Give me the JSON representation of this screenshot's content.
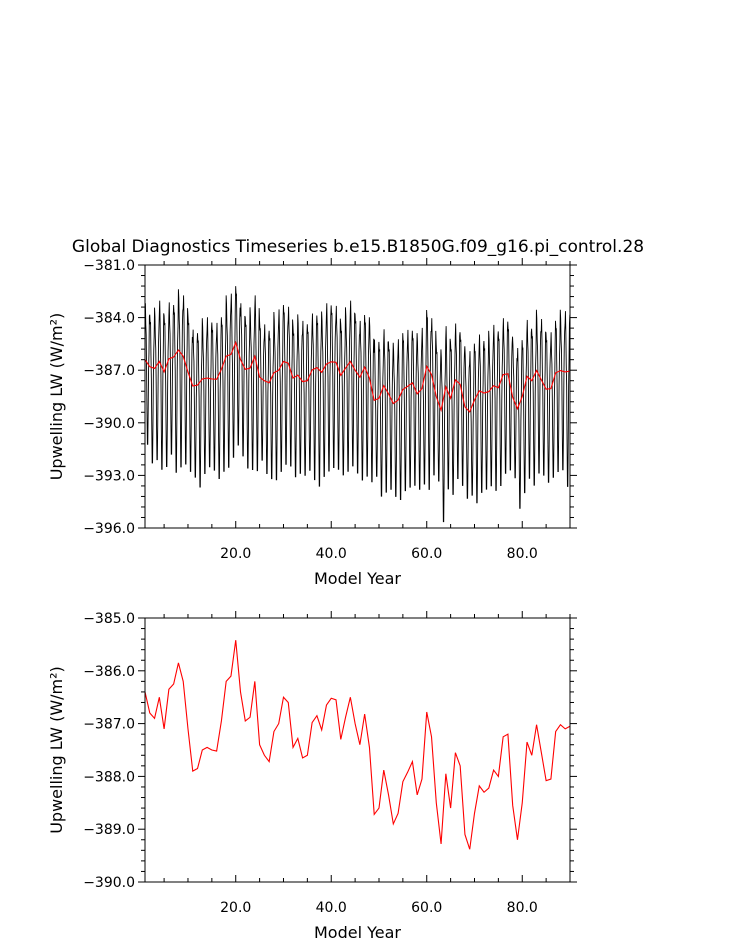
{
  "title": "Global Diagnostics Timeseries b.e15.B1850G.f09_g16.pi_control.28",
  "colors": {
    "monthly": "#000000",
    "annual": "#ff0000",
    "frame": "#000000"
  },
  "chart_data": [
    {
      "type": "line",
      "ylabel": "Upwelling LW (W/m²)",
      "xlabel": "Model Year",
      "xlim": [
        1,
        90
      ],
      "ylim": [
        -396.0,
        -381.0
      ],
      "xticks": [
        20,
        40,
        60,
        80
      ],
      "xtick_labels": [
        "20.0",
        "40.0",
        "60.0",
        "80.0"
      ],
      "yticks": [
        -381.0,
        -384.0,
        -387.0,
        -390.0,
        -393.0,
        -396.0
      ],
      "ytick_labels": [
        "−381.0",
        "−384.0",
        "−387.0",
        "−390.0",
        "−393.0",
        "−396.0"
      ],
      "series": [
        {
          "role": "monthly",
          "color": "#000000",
          "x_start": 1.0,
          "x_step": 0.0833,
          "seasonal_amplitude": 3.6,
          "annual_mean_source": "annual",
          "minima_by_year": [
            -391.5,
            -392.6,
            -392.4,
            -393.0,
            -392.8,
            -392.1,
            -393.2,
            -392.9,
            -392.7,
            -393.1,
            -393.4,
            -394.0,
            -393.2,
            -392.8,
            -393.0,
            -393.5,
            -393.1,
            -392.9,
            -392.3,
            -391.6,
            -392.2,
            -392.9,
            -393.0,
            -393.1,
            -392.4,
            -393.2,
            -393.5,
            -393.6,
            -393.1,
            -392.7,
            -392.8,
            -393.4,
            -393.2,
            -393.3,
            -393.0,
            -393.6,
            -394.0,
            -393.4,
            -393.1,
            -392.9,
            -393.0,
            -393.3,
            -393.1,
            -392.8,
            -393.2,
            -393.6,
            -393.4,
            -393.7,
            -393.3,
            -394.5,
            -394.3,
            -394.1,
            -394.5,
            -394.7,
            -394.2,
            -394.0,
            -393.9,
            -394.1,
            -393.8,
            -394.2,
            -393.3,
            -393.6,
            -396.0,
            -394.1,
            -394.4,
            -393.5,
            -393.9,
            -394.6,
            -394.4,
            -394.9,
            -394.3,
            -394.1,
            -393.9,
            -394.2,
            -393.9,
            -393.2,
            -393.0,
            -393.4,
            -395.2,
            -394.3,
            -393.5,
            -393.9,
            -393.2,
            -393.3,
            -393.7,
            -393.4,
            -393.1,
            -393.0,
            -394.0,
            -393.4
          ]
        },
        {
          "role": "annual",
          "color": "#ff0000",
          "x": [
            1,
            2,
            3,
            4,
            5,
            6,
            7,
            8,
            9,
            10,
            11,
            12,
            13,
            14,
            15,
            16,
            17,
            18,
            19,
            20,
            21,
            22,
            23,
            24,
            25,
            26,
            27,
            28,
            29,
            30,
            31,
            32,
            33,
            34,
            35,
            36,
            37,
            38,
            39,
            40,
            41,
            42,
            43,
            44,
            45,
            46,
            47,
            48,
            49,
            50,
            51,
            52,
            53,
            54,
            55,
            56,
            57,
            58,
            59,
            60,
            61,
            62,
            63,
            64,
            65,
            66,
            67,
            68,
            69,
            70,
            71,
            72,
            73,
            74,
            75,
            76,
            77,
            78,
            79,
            80,
            81,
            82,
            83,
            84,
            85,
            86,
            87,
            88,
            89,
            90
          ],
          "values": [
            -386.4,
            -386.8,
            -386.9,
            -386.5,
            -387.1,
            -386.35,
            -386.25,
            -385.85,
            -386.2,
            -387.1,
            -387.9,
            -387.85,
            -387.5,
            -387.45,
            -387.5,
            -387.52,
            -386.95,
            -386.2,
            -386.1,
            -385.42,
            -386.4,
            -386.95,
            -386.88,
            -386.2,
            -387.4,
            -387.6,
            -387.72,
            -387.15,
            -387.0,
            -386.5,
            -386.6,
            -387.45,
            -387.28,
            -387.65,
            -387.6,
            -386.98,
            -386.85,
            -387.12,
            -386.65,
            -386.52,
            -386.55,
            -387.3,
            -386.88,
            -386.5,
            -387.0,
            -387.4,
            -386.82,
            -387.45,
            -388.72,
            -388.6,
            -387.88,
            -388.35,
            -388.9,
            -388.7,
            -388.1,
            -387.92,
            -387.72,
            -388.35,
            -388.05,
            -386.78,
            -387.25,
            -388.5,
            -389.28,
            -387.95,
            -388.6,
            -387.55,
            -387.8,
            -389.1,
            -389.38,
            -388.7,
            -388.18,
            -388.3,
            -388.22,
            -387.88,
            -388.0,
            -387.25,
            -387.2,
            -388.55,
            -389.2,
            -388.5,
            -387.35,
            -387.6,
            -387.02,
            -387.55,
            -388.08,
            -388.05,
            -387.15,
            -387.02,
            -387.1,
            -387.05
          ]
        }
      ]
    },
    {
      "type": "line",
      "ylabel": "Upwelling LW (W/m²)",
      "xlabel": "Model Year",
      "xlim": [
        1,
        90
      ],
      "ylim": [
        -390.0,
        -385.0
      ],
      "xticks": [
        20,
        40,
        60,
        80
      ],
      "xtick_labels": [
        "20.0",
        "40.0",
        "60.0",
        "80.0"
      ],
      "yticks": [
        -385.0,
        -386.0,
        -387.0,
        -388.0,
        -389.0,
        -390.0
      ],
      "ytick_labels": [
        "−385.0",
        "−386.0",
        "−387.0",
        "−388.0",
        "−389.0",
        "−390.0"
      ],
      "series": [
        {
          "role": "annual",
          "color": "#ff0000",
          "x": [
            1,
            2,
            3,
            4,
            5,
            6,
            7,
            8,
            9,
            10,
            11,
            12,
            13,
            14,
            15,
            16,
            17,
            18,
            19,
            20,
            21,
            22,
            23,
            24,
            25,
            26,
            27,
            28,
            29,
            30,
            31,
            32,
            33,
            34,
            35,
            36,
            37,
            38,
            39,
            40,
            41,
            42,
            43,
            44,
            45,
            46,
            47,
            48,
            49,
            50,
            51,
            52,
            53,
            54,
            55,
            56,
            57,
            58,
            59,
            60,
            61,
            62,
            63,
            64,
            65,
            66,
            67,
            68,
            69,
            70,
            71,
            72,
            73,
            74,
            75,
            76,
            77,
            78,
            79,
            80,
            81,
            82,
            83,
            84,
            85,
            86,
            87,
            88,
            89,
            90
          ],
          "values": [
            -386.4,
            -386.8,
            -386.9,
            -386.5,
            -387.1,
            -386.35,
            -386.25,
            -385.85,
            -386.2,
            -387.1,
            -387.9,
            -387.85,
            -387.5,
            -387.45,
            -387.5,
            -387.52,
            -386.95,
            -386.2,
            -386.1,
            -385.42,
            -386.4,
            -386.95,
            -386.88,
            -386.2,
            -387.4,
            -387.6,
            -387.72,
            -387.15,
            -387.0,
            -386.5,
            -386.6,
            -387.45,
            -387.28,
            -387.65,
            -387.6,
            -386.98,
            -386.85,
            -387.12,
            -386.65,
            -386.52,
            -386.55,
            -387.3,
            -386.88,
            -386.5,
            -387.0,
            -387.4,
            -386.82,
            -387.45,
            -388.72,
            -388.6,
            -387.88,
            -388.35,
            -388.9,
            -388.7,
            -388.1,
            -387.92,
            -387.72,
            -388.35,
            -388.05,
            -386.78,
            -387.25,
            -388.5,
            -389.28,
            -387.95,
            -388.6,
            -387.55,
            -387.8,
            -389.1,
            -389.38,
            -388.7,
            -388.18,
            -388.3,
            -388.22,
            -387.88,
            -388.0,
            -387.25,
            -387.2,
            -388.55,
            -389.2,
            -388.5,
            -387.35,
            -387.6,
            -387.02,
            -387.55,
            -388.08,
            -388.05,
            -387.15,
            -387.02,
            -387.1,
            -387.05
          ]
        }
      ]
    }
  ]
}
